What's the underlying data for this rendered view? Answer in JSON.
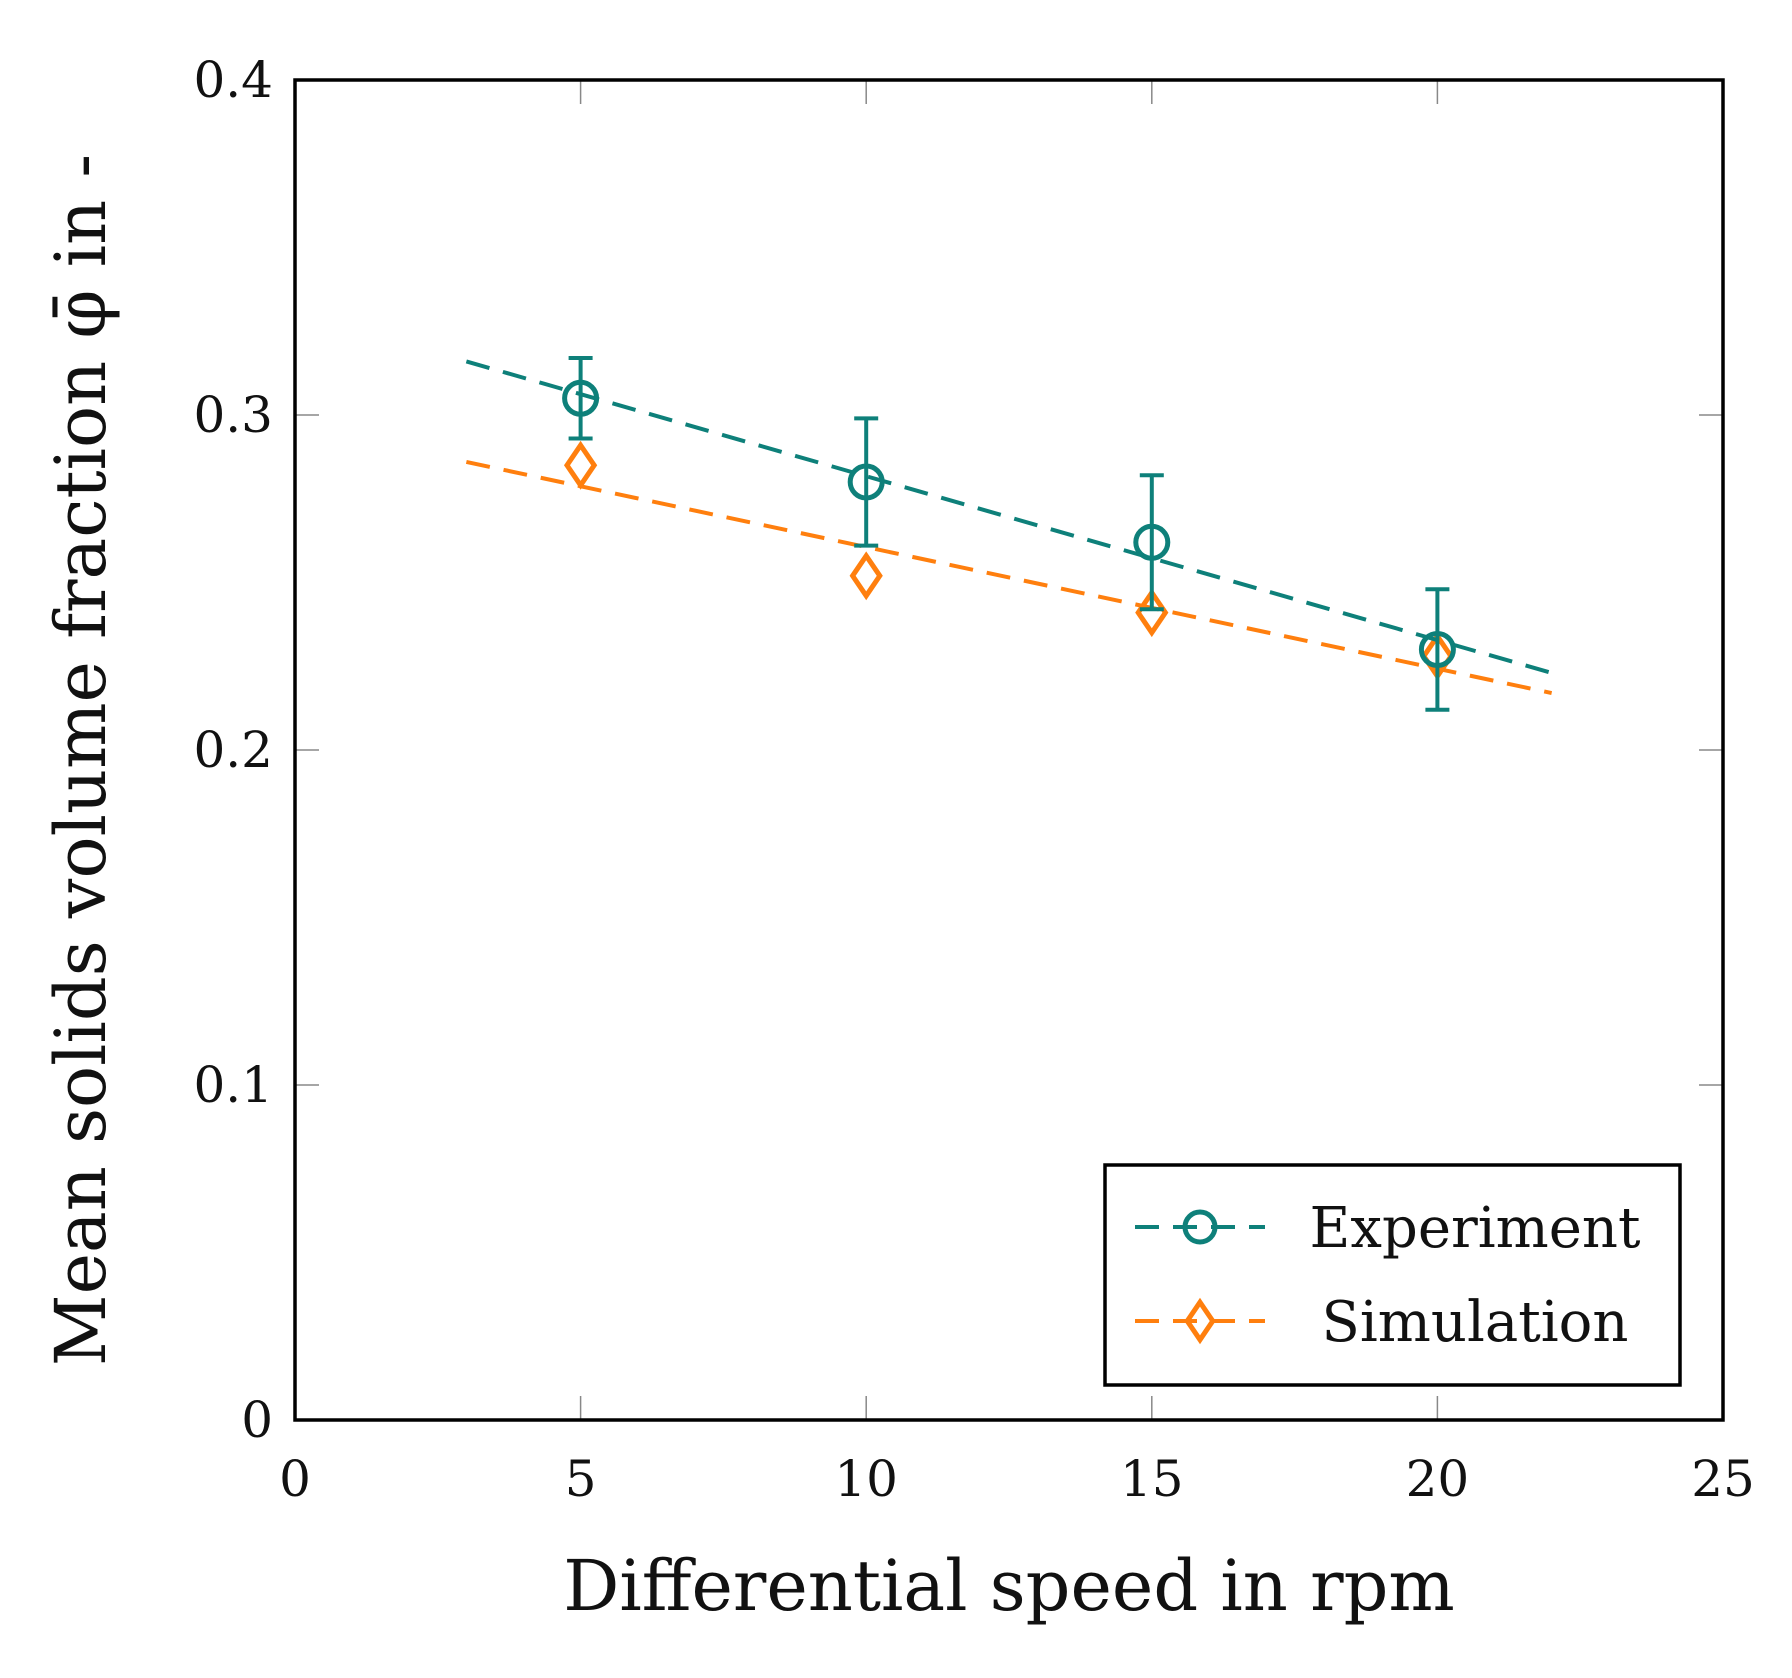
{
  "chart_data": {
    "type": "scatter",
    "xlabel": "Differential speed in rpm",
    "ylabel": "Mean solids volume fraction φ̄ in -",
    "xlim": [
      0,
      25
    ],
    "ylim": [
      0,
      0.4
    ],
    "x_ticks": [
      "0",
      "5",
      "10",
      "15",
      "20",
      "25"
    ],
    "y_ticks": [
      "0",
      "0.1",
      "0.2",
      "0.3",
      "0.4"
    ],
    "grid": false,
    "legend_position": "bottom-right",
    "series": [
      {
        "name": "Experiment",
        "marker": "circle",
        "color": "#0e807a",
        "x": [
          5,
          10,
          15,
          20
        ],
        "y": [
          0.305,
          0.28,
          0.262,
          0.23
        ],
        "error": [
          0.012,
          0.019,
          0.02,
          0.018
        ],
        "fit": {
          "x": [
            3,
            22
          ],
          "y": [
            0.316,
            0.223
          ]
        }
      },
      {
        "name": "Simulation",
        "marker": "diamond",
        "color": "#ff7f0e",
        "x": [
          5,
          10,
          15,
          20
        ],
        "y": [
          0.285,
          0.252,
          0.241,
          0.228
        ],
        "fit": {
          "x": [
            3,
            22
          ],
          "y": [
            0.286,
            0.217
          ]
        }
      }
    ]
  }
}
